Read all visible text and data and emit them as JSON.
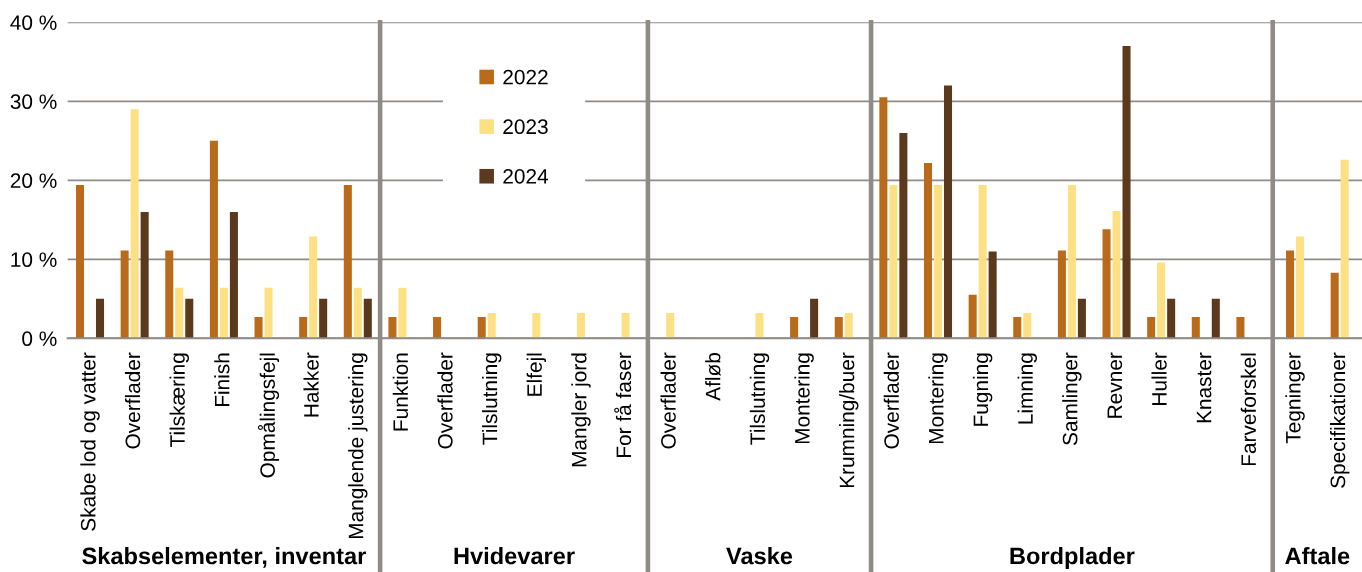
{
  "chart_data": [
    {
      "type": "bar",
      "xlabel": "Skabselementer, inventar",
      "categories": [
        "Skabe lod og vatter",
        "Overflader",
        "Tilskæring",
        "Finish",
        "Opmålingsfejl",
        "Hakker",
        "Manglende justering"
      ],
      "series": [
        {
          "color": "#b96a1b",
          "values": [
            19.4,
            11.1,
            11.1,
            25.0,
            2.7,
            2.7,
            19.4
          ]
        },
        {
          "color": "#fde084",
          "values": [
            null,
            29.0,
            6.4,
            6.4,
            6.4,
            12.9,
            6.4
          ]
        },
        {
          "color": "#5c381d",
          "values": [
            5,
            16,
            5,
            16,
            null,
            5,
            5
          ]
        }
      ],
      "ylim": [
        0,
        40
      ],
      "yticks": [
        {
          "value": 0,
          "label": "0 %"
        },
        {
          "value": 10,
          "label": "10 %"
        },
        {
          "value": 20,
          "label": "20 %"
        },
        {
          "value": 30,
          "label": "30 %"
        },
        {
          "value": 40,
          "label": "40 %"
        }
      ],
      "grid": "y"
    },
    {
      "type": "bar",
      "xlabel": "Hvidevarer",
      "categories": [
        "Funktion",
        "Overflader",
        "Tilslutning",
        "Elfejl",
        "Mangler jord",
        "For få faser"
      ],
      "series": [
        {
          "name": "2022",
          "color": "#b96a1b",
          "values": [
            2.7,
            2.7,
            2.7,
            null,
            null,
            null
          ]
        },
        {
          "name": "2023",
          "color": "#fde084",
          "values": [
            6.4,
            null,
            3.2,
            3.2,
            3.2,
            3.2
          ]
        },
        {
          "name": "2024",
          "color": "#5c381d",
          "values": [
            null,
            null,
            null,
            null,
            null,
            null
          ]
        }
      ],
      "ylim": [
        0,
        40
      ],
      "yticks": [
        {
          "value": 0,
          "label": null
        },
        {
          "value": 10,
          "label": null
        },
        {
          "value": 20,
          "label": null
        },
        {
          "value": 30,
          "label": null
        },
        {
          "value": 40,
          "label": null
        }
      ],
      "grid": "y",
      "legend": "top",
      "tick_labels": "x"
    },
    {
      "type": "bar",
      "xlabel": "Vaske",
      "categories": [
        "Overflader",
        "Afløb",
        "Tilslutning",
        "Montering",
        "Krumning/buer"
      ],
      "series": [
        {
          "color": "#b96a1b",
          "values": [
            null,
            null,
            null,
            2.7,
            2.7
          ]
        },
        {
          "color": "#fde084",
          "values": [
            3.2,
            null,
            3.2,
            null,
            3.2
          ]
        },
        {
          "color": "#5c381d",
          "values": [
            null,
            null,
            null,
            5,
            null
          ]
        }
      ],
      "ylim": [
        0,
        40
      ],
      "yticks": [
        {
          "value": 0,
          "label": null
        },
        {
          "value": 10,
          "label": null
        },
        {
          "value": 20,
          "label": null
        },
        {
          "value": 30,
          "label": null
        },
        {
          "value": 40,
          "label": null
        }
      ],
      "grid": "y",
      "tick_labels": "x"
    },
    {
      "type": "bar",
      "xlabel": "Bordplader",
      "categories": [
        "Overflader",
        "Montering",
        "Fugning",
        "Limning",
        "Samlinger",
        "Revner",
        "Huller",
        "Knaster",
        "Farveforskel"
      ],
      "series": [
        {
          "color": "#b96a1b",
          "values": [
            30.5,
            22.2,
            5.5,
            2.7,
            11.1,
            13.8,
            2.7,
            2.7,
            2.7
          ]
        },
        {
          "color": "#fde084",
          "values": [
            19.4,
            19.4,
            19.4,
            3.2,
            19.4,
            16.1,
            9.6,
            null,
            null
          ]
        },
        {
          "color": "#5c381d",
          "values": [
            26,
            32,
            11,
            null,
            5,
            37,
            5,
            5,
            null
          ]
        }
      ],
      "ylim": [
        0,
        40
      ],
      "yticks": [
        {
          "value": 0,
          "label": null
        },
        {
          "value": 10,
          "label": null
        },
        {
          "value": 20,
          "label": null
        },
        {
          "value": 30,
          "label": null
        },
        {
          "value": 40,
          "label": null
        }
      ],
      "grid": "y",
      "tick_labels": "x"
    },
    {
      "type": "bar",
      "xlabel": "Aftale",
      "categories": [
        "Tegninger",
        "Specifikationer"
      ],
      "series": [
        {
          "color": "#b96a1b",
          "values": [
            11.1,
            8.3
          ]
        },
        {
          "color": "#fde084",
          "values": [
            12.9,
            22.6
          ]
        }
      ],
      "ylim": [
        0,
        40
      ],
      "yticks": [
        {
          "value": 0,
          "label": null
        },
        {
          "value": 10,
          "label": null
        },
        {
          "value": 20,
          "label": null
        },
        {
          "value": 30,
          "label": null
        },
        {
          "value": 40,
          "label": null
        }
      ],
      "grid": "y",
      "tick_labels": "x"
    }
  ]
}
